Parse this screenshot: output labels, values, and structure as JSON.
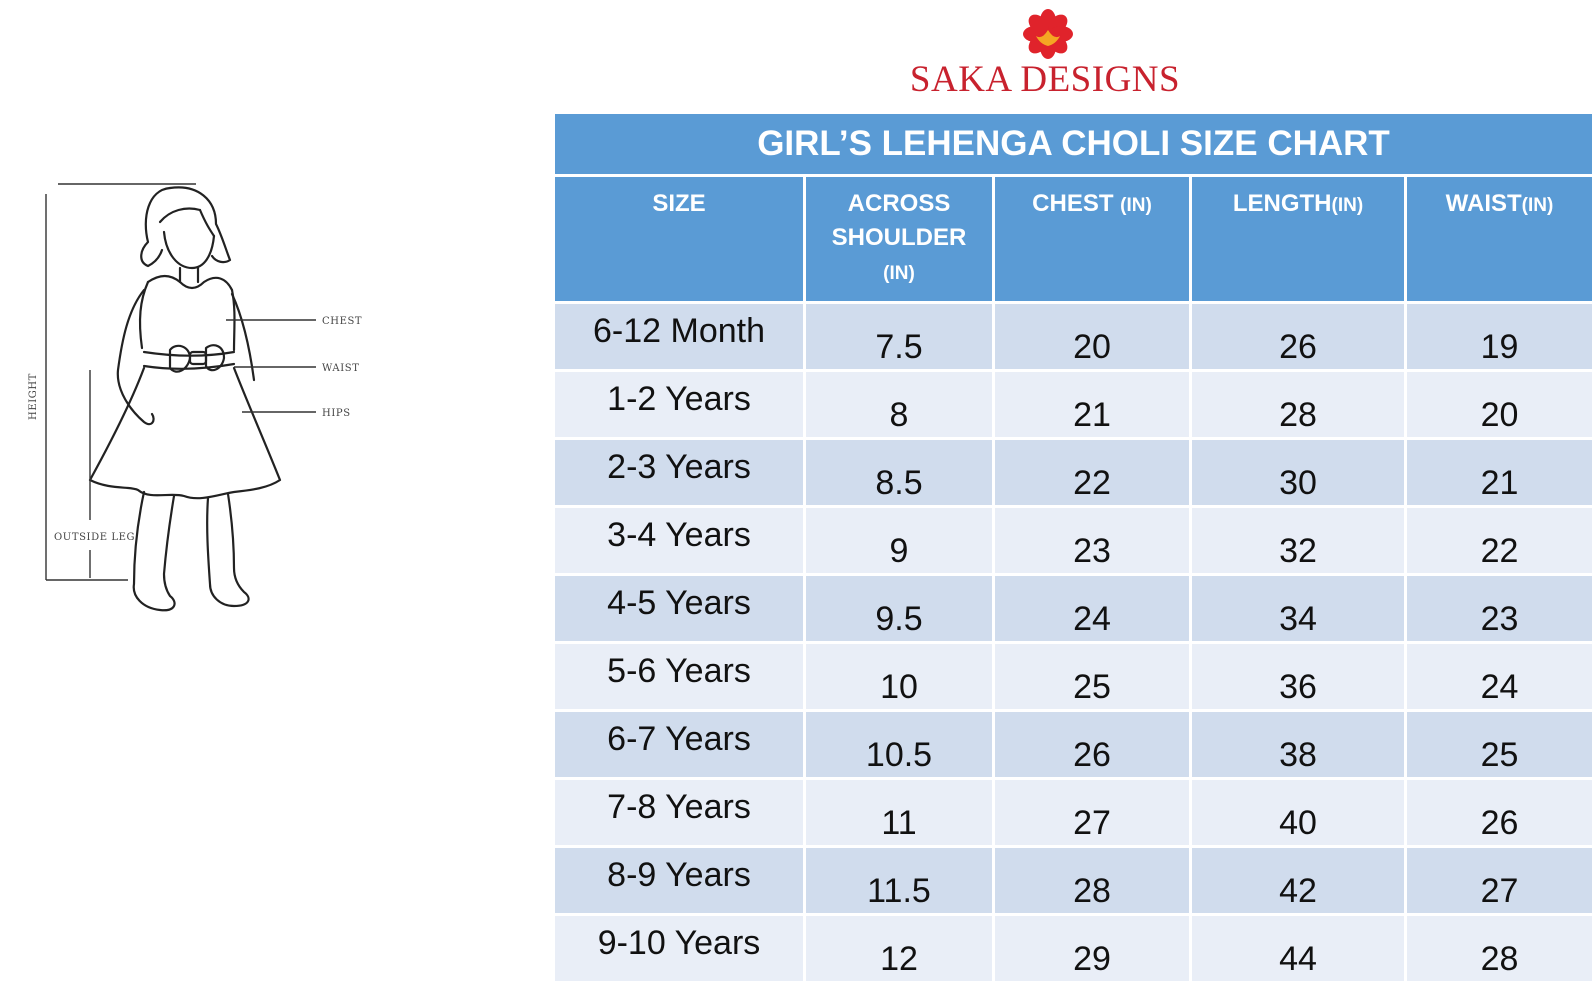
{
  "brand": {
    "name": "SAKA DESIGNS",
    "colors": {
      "primary": "#c8222e",
      "flower_center": "#f5a623"
    }
  },
  "illustration": {
    "icon": "girl-dress-outline",
    "labels": {
      "chest": "CHEST",
      "waist": "WAIST",
      "hips": "HIPS",
      "height": "HEIGHT",
      "outside_leg": "OUTSIDE LEG"
    }
  },
  "table": {
    "title": "GIRL’S LEHENGA CHOLI SIZE CHART",
    "colors": {
      "header": "#5a9bd5",
      "row_dark": "#d0dced",
      "row_light": "#e9eef7"
    },
    "columns": [
      {
        "label": "SIZE",
        "unit": ""
      },
      {
        "label": "ACROSS SHOULDER",
        "unit": "(IN)"
      },
      {
        "label": "CHEST",
        "unit": "(IN)"
      },
      {
        "label": "LENGTH",
        "unit": "(IN)"
      },
      {
        "label": "WAIST",
        "unit": "(IN)"
      }
    ],
    "rows": [
      [
        "6-12 Month",
        "7.5",
        "20",
        "26",
        "19"
      ],
      [
        "1-2 Years",
        "8",
        "21",
        "28",
        "20"
      ],
      [
        "2-3 Years",
        "8.5",
        "22",
        "30",
        "21"
      ],
      [
        "3-4 Years",
        "9",
        "23",
        "32",
        "22"
      ],
      [
        "4-5 Years",
        "9.5",
        "24",
        "34",
        "23"
      ],
      [
        "5-6 Years",
        "10",
        "25",
        "36",
        "24"
      ],
      [
        "6-7 Years",
        "10.5",
        "26",
        "38",
        "25"
      ],
      [
        "7-8 Years",
        "11",
        "27",
        "40",
        "26"
      ],
      [
        "8-9 Years",
        "11.5",
        "28",
        "42",
        "27"
      ],
      [
        "9-10 Years",
        "12",
        "29",
        "44",
        "28"
      ]
    ]
  }
}
